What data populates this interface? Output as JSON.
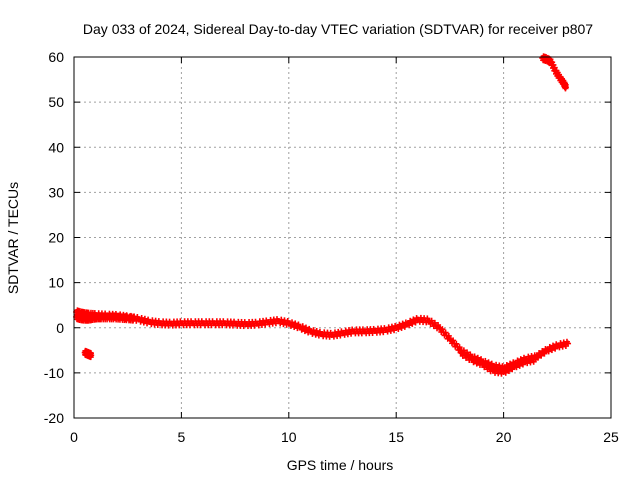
{
  "chart_data": {
    "type": "scatter",
    "title": "Day 033 of 2024, Sidereal Day-to-day VTEC variation (SDTVAR) for receiver p807",
    "xlabel": "GPS time / hours",
    "ylabel": "SDTVAR / TECUs",
    "xlim": [
      0,
      25
    ],
    "ylim": [
      -20,
      60
    ],
    "xticks": [
      0,
      5,
      10,
      15,
      20,
      25
    ],
    "yticks": [
      -20,
      -10,
      0,
      10,
      20,
      30,
      40,
      50,
      60
    ],
    "grid": true,
    "marker": "plus",
    "color": "#ff0000",
    "series": [
      {
        "name": "main",
        "x": [
          0.1,
          0.3,
          0.5,
          0.7,
          1.0,
          1.5,
          2.0,
          2.5,
          3.0,
          3.5,
          4.0,
          4.5,
          5.0,
          5.5,
          6.0,
          6.5,
          7.0,
          7.5,
          8.0,
          8.5,
          9.0,
          9.5,
          10.0,
          10.5,
          11.0,
          11.5,
          12.0,
          12.5,
          13.0,
          13.5,
          14.0,
          14.5,
          15.0,
          15.5,
          16.0,
          16.5,
          17.0,
          17.5,
          18.0,
          18.5,
          19.0,
          19.5,
          20.0,
          20.5,
          21.0,
          21.5,
          22.0,
          22.5,
          23.0
        ],
        "y": [
          3.5,
          3.2,
          3.0,
          2.9,
          2.8,
          2.7,
          2.6,
          2.3,
          1.9,
          1.3,
          1.0,
          0.9,
          1.0,
          1.0,
          1.0,
          1.0,
          1.0,
          0.9,
          0.8,
          0.9,
          1.2,
          1.5,
          1.0,
          0.2,
          -0.8,
          -1.4,
          -1.6,
          -1.2,
          -0.8,
          -0.8,
          -0.7,
          -0.5,
          0.0,
          0.8,
          1.8,
          1.6,
          0.0,
          -2.5,
          -5.0,
          -6.5,
          -7.5,
          -8.5,
          -9.0,
          -8.0,
          -7.0,
          -6.5,
          -5.0,
          -4.0,
          -3.5
        ]
      },
      {
        "name": "lower-branch",
        "x": [
          0.1,
          0.3,
          0.5,
          0.7,
          0.9,
          1.1,
          1.3,
          1.6,
          1.9,
          2.2,
          2.5,
          2.8
        ],
        "y": [
          2.4,
          2.1,
          2.0,
          2.0,
          2.2,
          2.3,
          2.3,
          2.3,
          2.3,
          2.2,
          2.1,
          2.0
        ]
      },
      {
        "name": "lower-band",
        "x": [
          18.0,
          18.5,
          19.0,
          19.5,
          20.0,
          20.5,
          21.0,
          21.5
        ],
        "y": [
          -5.5,
          -7.0,
          -8.0,
          -9.5,
          -9.8,
          -8.5,
          -7.5,
          -7.0
        ]
      },
      {
        "name": "isolated",
        "x": [
          0.5,
          0.6,
          0.7,
          0.8
        ],
        "y": [
          -5.5,
          -5.7,
          -5.9,
          -6.1
        ]
      },
      {
        "name": "upper",
        "x": [
          21.8,
          22.0,
          22.2,
          22.4,
          22.6,
          22.8,
          22.9
        ],
        "y": [
          59.8,
          59.5,
          59.0,
          57.0,
          55.5,
          54.2,
          53.3
        ]
      }
    ]
  }
}
